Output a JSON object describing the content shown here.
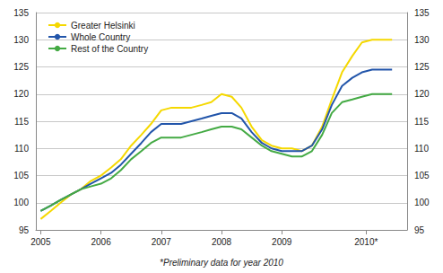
{
  "chart_data": {
    "type": "line",
    "footnote": "*Preliminary data for year 2010",
    "x": [
      2005.0,
      2005.17,
      2005.33,
      2005.5,
      2005.67,
      2005.83,
      2006.0,
      2006.17,
      2006.33,
      2006.5,
      2006.67,
      2006.83,
      2007.0,
      2007.17,
      2007.33,
      2007.5,
      2007.67,
      2007.83,
      2008.0,
      2008.17,
      2008.33,
      2008.5,
      2008.67,
      2008.83,
      2009.0,
      2009.17,
      2009.33,
      2009.5,
      2009.67,
      2009.83,
      2010.0,
      2010.17,
      2010.33,
      2010.5,
      2010.67,
      2010.83
    ],
    "series": [
      {
        "name": "Greater Helsinki",
        "color": "#F5D800",
        "values": [
          97.0,
          98.5,
          100.0,
          101.5,
          102.5,
          104.0,
          105.0,
          106.5,
          108.0,
          110.5,
          112.5,
          114.5,
          117.0,
          117.5,
          117.5,
          117.5,
          118.0,
          118.5,
          120.0,
          119.5,
          117.5,
          114.0,
          111.5,
          110.5,
          110.0,
          110.0,
          109.5,
          110.5,
          114.0,
          119.0,
          124.0,
          127.0,
          129.5,
          130.0,
          130.0,
          130.0
        ]
      },
      {
        "name": "Whole Country",
        "color": "#2255AA",
        "values": [
          98.5,
          99.5,
          100.5,
          101.5,
          102.5,
          103.5,
          104.5,
          105.5,
          107.0,
          109.0,
          111.0,
          113.0,
          114.5,
          114.5,
          114.5,
          115.0,
          115.5,
          116.0,
          116.5,
          116.5,
          115.5,
          113.0,
          111.0,
          110.0,
          109.5,
          109.5,
          109.5,
          110.5,
          113.5,
          118.0,
          121.5,
          123.0,
          124.0,
          124.5,
          124.5,
          124.5
        ]
      },
      {
        "name": "Rest of the Country",
        "color": "#44AA44",
        "values": [
          98.5,
          99.5,
          100.5,
          101.5,
          102.5,
          103.0,
          103.5,
          104.5,
          106.0,
          108.0,
          109.5,
          111.0,
          112.0,
          112.0,
          112.0,
          112.5,
          113.0,
          113.5,
          114.0,
          114.0,
          113.5,
          112.0,
          110.5,
          109.5,
          109.0,
          108.5,
          108.5,
          109.5,
          112.5,
          116.5,
          118.5,
          119.0,
          119.5,
          120.0,
          120.0,
          120.0
        ]
      }
    ],
    "xlim": [
      2004.92,
      2011.08
    ],
    "xticks": [
      2005,
      2006,
      2007,
      2008,
      2009,
      {
        "value": 2010.4,
        "label": "2010*"
      }
    ],
    "ylim": [
      95,
      135
    ],
    "yticks": [
      95,
      100,
      105,
      110,
      115,
      120,
      125,
      130,
      135
    ],
    "y2lim": [
      95,
      135
    ],
    "y2ticks": [
      95,
      100,
      105,
      110,
      115,
      120,
      125,
      130,
      135
    ],
    "grid": true,
    "legend": "upper left"
  }
}
